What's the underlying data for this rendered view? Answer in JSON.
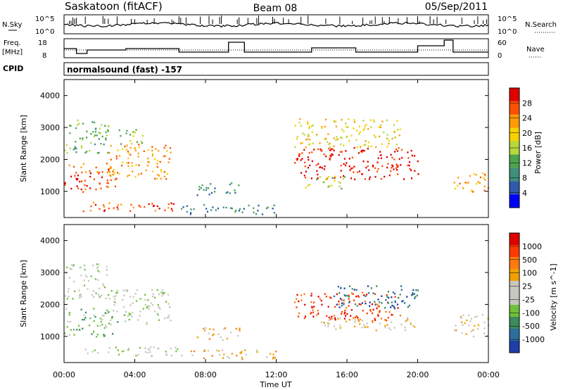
{
  "header": {
    "station": "Saskatoon (fitACF)",
    "beam": "Beam 08",
    "date": "05/Sep/2011"
  },
  "noise_panel": {
    "left_label": "N.Sky",
    "right_label": "N.Search",
    "left_ticks": [
      "10^5",
      "10^0"
    ],
    "right_ticks": [
      "10^5",
      "10^0"
    ]
  },
  "freq_panel": {
    "left_label_1": "Freq.",
    "left_label_2": "[MHz]",
    "right_label": "Nave",
    "left_ticks": [
      "18",
      "8"
    ],
    "right_ticks": [
      "60",
      "0"
    ]
  },
  "cpid": {
    "label": "CPID",
    "value": "normalsound (fast) -157"
  },
  "x_axis": {
    "label": "Time UT",
    "ticks": [
      "00:00",
      "04:00",
      "08:00",
      "12:00",
      "16:00",
      "20:00",
      "00:00"
    ]
  },
  "colors": {
    "power": [
      "#0000ff",
      "#2e5aa8",
      "#3f8f7a",
      "#4ca54c",
      "#b5d83a",
      "#f5d200",
      "#ff9a00",
      "#ff5000",
      "#e00000"
    ],
    "velocity": [
      "#1f3fa8",
      "#2d6e9e",
      "#3c8b5c",
      "#6cc23a",
      "#c7c7c0",
      "#c7c7c0",
      "#f0a000",
      "#ff7a10",
      "#ff3a00",
      "#e00000"
    ]
  },
  "chart_data": [
    {
      "type": "heatmap",
      "name": "power",
      "ylabel": "Slant Range [km]",
      "yticks": [
        "1000",
        "2000",
        "3000",
        "4000"
      ],
      "ylim": [
        180,
        4500
      ],
      "xlim_hours": [
        0,
        24
      ],
      "colorbar_label": "Power [dB]",
      "colorbar_ticks": [
        "4",
        "8",
        "12",
        "16",
        "20",
        "24",
        "28"
      ],
      "regions": [
        {
          "t0": 0.0,
          "t1": 3.0,
          "r0": 1000,
          "r1": 1900,
          "level": 7
        },
        {
          "t0": 0.0,
          "t1": 2.5,
          "r0": 2200,
          "r1": 3300,
          "level": 3
        },
        {
          "t0": 2.5,
          "t1": 6.0,
          "r0": 1400,
          "r1": 2500,
          "level": 6
        },
        {
          "t0": 1.0,
          "t1": 6.5,
          "r0": 400,
          "r1": 700,
          "level": 7
        },
        {
          "t0": 3.0,
          "t1": 4.5,
          "r0": 2500,
          "r1": 3000,
          "level": 4
        },
        {
          "t0": 7.5,
          "t1": 10.0,
          "r0": 900,
          "r1": 1300,
          "level": 2
        },
        {
          "t0": 6.5,
          "t1": 12.0,
          "r0": 300,
          "r1": 600,
          "level": 2
        },
        {
          "t0": 13.0,
          "t1": 20.0,
          "r0": 1400,
          "r1": 2400,
          "level": 8
        },
        {
          "t0": 13.0,
          "t1": 19.0,
          "r0": 2400,
          "r1": 3300,
          "level": 5
        },
        {
          "t0": 13.5,
          "t1": 16.0,
          "r0": 1100,
          "r1": 1500,
          "level": 4
        },
        {
          "t0": 22.0,
          "t1": 24.0,
          "r0": 1000,
          "r1": 1600,
          "level": 6
        }
      ]
    },
    {
      "type": "heatmap",
      "name": "velocity",
      "ylabel": "Slant Range [km]",
      "yticks": [
        "1000",
        "2000",
        "3000",
        "4000"
      ],
      "ylim": [
        180,
        4500
      ],
      "xlim_hours": [
        0,
        24
      ],
      "colorbar_label": "Velocity [m s^-1]",
      "colorbar_ticks": [
        "1000",
        "500",
        "100",
        "25",
        "-25",
        "-100",
        "-500",
        "-1000"
      ],
      "regions": [
        {
          "t0": 0.0,
          "t1": 3.0,
          "r0": 1000,
          "r1": 1900,
          "level": 3
        },
        {
          "t0": 0.0,
          "t1": 2.5,
          "r0": 2200,
          "r1": 3300,
          "level": 4
        },
        {
          "t0": 2.5,
          "t1": 6.0,
          "r0": 1400,
          "r1": 2500,
          "level": 4
        },
        {
          "t0": 1.0,
          "t1": 6.5,
          "r0": 400,
          "r1": 700,
          "level": 4
        },
        {
          "t0": 7.5,
          "t1": 10.0,
          "r0": 900,
          "r1": 1300,
          "level": 6
        },
        {
          "t0": 6.5,
          "t1": 12.0,
          "r0": 300,
          "r1": 600,
          "level": 6
        },
        {
          "t0": 13.0,
          "t1": 19.0,
          "r0": 1500,
          "r1": 2400,
          "level": 8
        },
        {
          "t0": 14.5,
          "t1": 20.0,
          "r0": 1200,
          "r1": 1600,
          "level": 5
        },
        {
          "t0": 15.0,
          "t1": 20.0,
          "r0": 1900,
          "r1": 2600,
          "level": 1
        },
        {
          "t0": 22.0,
          "t1": 24.0,
          "r0": 1000,
          "r1": 1700,
          "level": 5
        }
      ]
    }
  ]
}
